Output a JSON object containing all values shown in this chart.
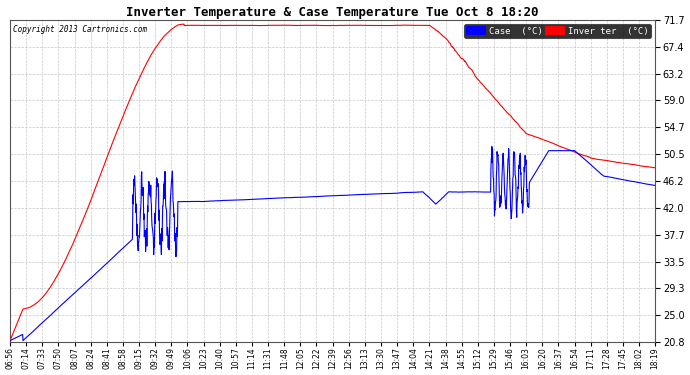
{
  "title": "Inverter Temperature & Case Temperature Tue Oct 8 18:20",
  "copyright": "Copyright 2013 Cartronics.com",
  "background_color": "#ffffff",
  "plot_bg_color": "#ffffff",
  "grid_color": "#c8c8c8",
  "ylim": [
    20.8,
    71.7
  ],
  "yticks": [
    20.8,
    25.0,
    29.3,
    33.5,
    37.7,
    42.0,
    46.2,
    50.5,
    54.7,
    59.0,
    63.2,
    67.4,
    71.7
  ],
  "xtick_labels": [
    "06:56",
    "07:14",
    "07:33",
    "07:50",
    "08:07",
    "08:24",
    "08:41",
    "08:58",
    "09:15",
    "09:32",
    "09:49",
    "10:06",
    "10:23",
    "10:40",
    "10:57",
    "11:14",
    "11:31",
    "11:48",
    "12:05",
    "12:22",
    "12:39",
    "12:56",
    "13:13",
    "13:30",
    "13:47",
    "14:04",
    "14:21",
    "14:38",
    "14:55",
    "15:12",
    "15:29",
    "15:46",
    "16:03",
    "16:20",
    "16:37",
    "16:54",
    "17:11",
    "17:28",
    "17:45",
    "18:02",
    "18:19"
  ],
  "legend_case_label": "Case  (°C)",
  "legend_inverter_label": "Inver ter  (°C)",
  "case_color": "#0000ff",
  "inverter_color": "#ff0000",
  "line_width": 0.8,
  "figsize": [
    6.9,
    3.75
  ],
  "dpi": 100
}
